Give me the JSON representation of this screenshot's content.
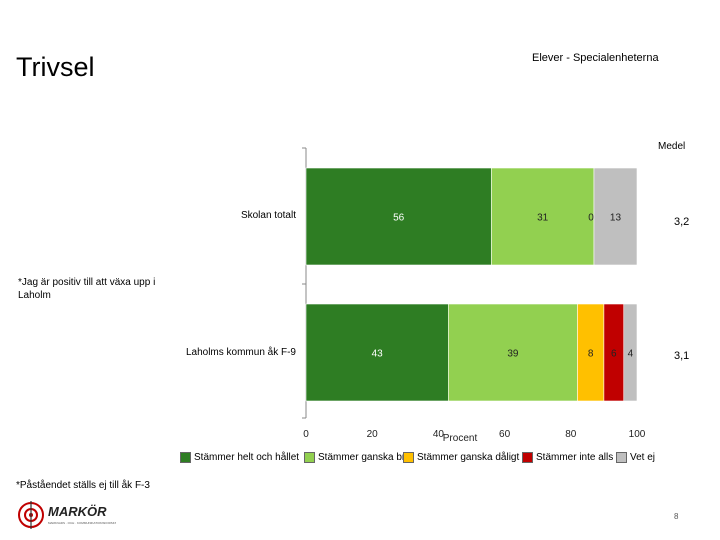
{
  "header": {
    "title": "Trivsel",
    "subtitle": "Elever - Specialenheterna"
  },
  "question": "*Jag är positiv till att växa upp i Laholm",
  "mean_header": "Medel",
  "footnote": "*Påståendet ställs ej till åk F-3",
  "page_number": "8",
  "logo": {
    "text": "MARKÖR",
    "tagline": "MARKNADS · OCH · KOMMUNIKATIONSFORSKNING"
  },
  "colors": {
    "stammer_helt": "#2E7D23",
    "stammer_ganska_bra": "#92D050",
    "stammer_ganska_daligt": "#FFC000",
    "stammer_inte_alls": "#C00000",
    "vet_ej": "#BFBFBF",
    "logo_red": "#C00000"
  },
  "chart_data": {
    "type": "bar",
    "orientation": "horizontal",
    "stacked": true,
    "title": "Trivsel",
    "xlabel": "Procent",
    "xlim": [
      0,
      100
    ],
    "xticks": [
      0,
      20,
      40,
      60,
      80,
      100
    ],
    "categories": [
      "Skolan totalt",
      "Laholms kommun åk F-9"
    ],
    "series": [
      {
        "name": "Stämmer helt och hållet",
        "color_key": "stammer_helt",
        "values": [
          56,
          43
        ],
        "labels": [
          "56",
          "43"
        ]
      },
      {
        "name": "Stämmer ganska bra",
        "color_key": "stammer_ganska_bra",
        "values": [
          31,
          39
        ],
        "labels": [
          "31",
          "39"
        ]
      },
      {
        "name": "Stämmer ganska dåligt",
        "color_key": "stammer_ganska_daligt",
        "values": [
          0,
          8
        ],
        "labels": [
          "0",
          "8"
        ]
      },
      {
        "name": "Stämmer inte alls",
        "color_key": "stammer_inte_alls",
        "values": [
          0,
          6
        ],
        "labels": [
          "",
          "6"
        ]
      },
      {
        "name": "Vet ej",
        "color_key": "vet_ej",
        "values": [
          13,
          4
        ],
        "labels": [
          "13",
          "4"
        ]
      }
    ],
    "means": [
      "3,2",
      "3,1"
    ],
    "legend_position": "bottom"
  }
}
